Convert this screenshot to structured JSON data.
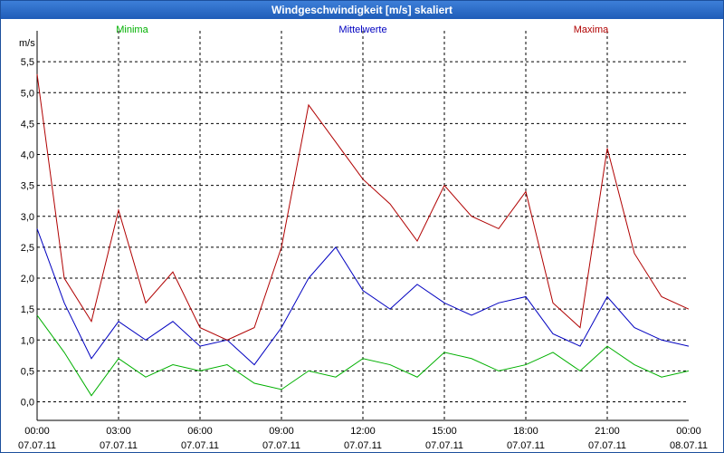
{
  "window": {
    "title": "Windgeschwindigkeit [m/s] skaliert"
  },
  "chart_data": {
    "type": "line",
    "title": "Windgeschwindigkeit [m/s] skaliert",
    "ylabel": "m/s",
    "xlabel": "",
    "ylim": [
      -0.3,
      6.0
    ],
    "xlim": [
      0,
      24
    ],
    "y_ticks": [
      "0,0",
      "0,5",
      "1,0",
      "1,5",
      "2,0",
      "2,5",
      "3,0",
      "3,5",
      "4,0",
      "4,5",
      "5,0",
      "5,5"
    ],
    "x_ticks": [
      {
        "time": "00:00",
        "date": "07.07.11"
      },
      {
        "time": "03:00",
        "date": "07.07.11"
      },
      {
        "time": "06:00",
        "date": "07.07.11"
      },
      {
        "time": "09:00",
        "date": "07.07.11"
      },
      {
        "time": "12:00",
        "date": "07.07.11"
      },
      {
        "time": "15:00",
        "date": "07.07.11"
      },
      {
        "time": "18:00",
        "date": "07.07.11"
      },
      {
        "time": "21:00",
        "date": "07.07.11"
      },
      {
        "time": "00:00",
        "date": "08.07.11"
      }
    ],
    "grid": true,
    "x_hours": [
      0,
      1,
      2,
      3,
      4,
      5,
      6,
      7,
      8,
      9,
      10,
      11,
      12,
      13,
      14,
      15,
      16,
      17,
      18,
      19,
      20,
      21,
      22,
      23,
      24
    ],
    "series": [
      {
        "name": "Minima",
        "color": "#00b000",
        "values": [
          1.4,
          0.8,
          0.1,
          0.7,
          0.4,
          0.6,
          0.5,
          0.6,
          0.3,
          0.2,
          0.5,
          0.4,
          0.7,
          0.6,
          0.4,
          0.8,
          0.7,
          0.5,
          0.6,
          0.8,
          0.5,
          0.9,
          0.6,
          0.4,
          0.5
        ]
      },
      {
        "name": "Mittelwerte",
        "color": "#0000c0",
        "values": [
          2.8,
          1.6,
          0.7,
          1.3,
          1.0,
          1.3,
          0.9,
          1.0,
          0.6,
          1.2,
          2.0,
          2.5,
          1.8,
          1.5,
          1.9,
          1.6,
          1.4,
          1.6,
          1.7,
          1.1,
          0.9,
          1.7,
          1.2,
          1.0,
          0.9
        ]
      },
      {
        "name": "Maxima",
        "color": "#b00000",
        "values": [
          5.3,
          2.0,
          1.3,
          3.1,
          1.6,
          2.1,
          1.2,
          1.0,
          1.2,
          2.5,
          4.8,
          4.2,
          3.6,
          3.2,
          2.6,
          3.5,
          3.0,
          2.8,
          3.4,
          1.6,
          1.2,
          4.1,
          2.4,
          1.7,
          1.5
        ]
      }
    ]
  }
}
